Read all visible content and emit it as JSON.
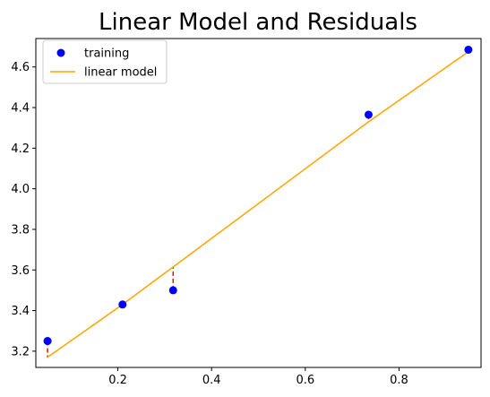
{
  "chart_data": {
    "type": "scatter",
    "title": "Linear Model and Residuals",
    "xlabel": "",
    "ylabel": "",
    "xlim": [
      0.025,
      0.975
    ],
    "ylim": [
      3.12,
      4.74
    ],
    "x_ticks": [
      0.2,
      0.4,
      0.6,
      0.8
    ],
    "x_tick_labels": [
      "0.2",
      "0.4",
      "0.6",
      "0.8"
    ],
    "y_ticks": [
      3.2,
      3.4,
      3.6,
      3.8,
      4.0,
      4.2,
      4.4,
      4.6
    ],
    "y_tick_labels": [
      "3.2",
      "3.4",
      "3.6",
      "3.8",
      "4.0",
      "4.2",
      "4.4",
      "4.6"
    ],
    "grid": false,
    "legend_position": "top-left",
    "series": [
      {
        "name": "training",
        "kind": "scatter",
        "color": "#0000ff",
        "x": [
          0.05,
          0.21,
          0.318,
          0.735,
          0.948
        ],
        "y": [
          3.25,
          3.43,
          3.5,
          4.365,
          4.685
        ]
      },
      {
        "name": "linear model",
        "kind": "line",
        "color": "#ffa500",
        "x": [
          0.05,
          0.21,
          0.318,
          0.735,
          0.948
        ],
        "y": [
          3.17,
          3.43,
          3.615,
          4.33,
          4.675
        ]
      }
    ],
    "residuals": {
      "color": "#ff0000",
      "style": "dashed",
      "x": [
        0.05,
        0.21,
        0.318,
        0.735,
        0.948
      ],
      "y_from": [
        3.25,
        3.43,
        3.5,
        4.365,
        4.685
      ],
      "y_to": [
        3.17,
        3.43,
        3.615,
        4.33,
        4.675
      ]
    }
  }
}
